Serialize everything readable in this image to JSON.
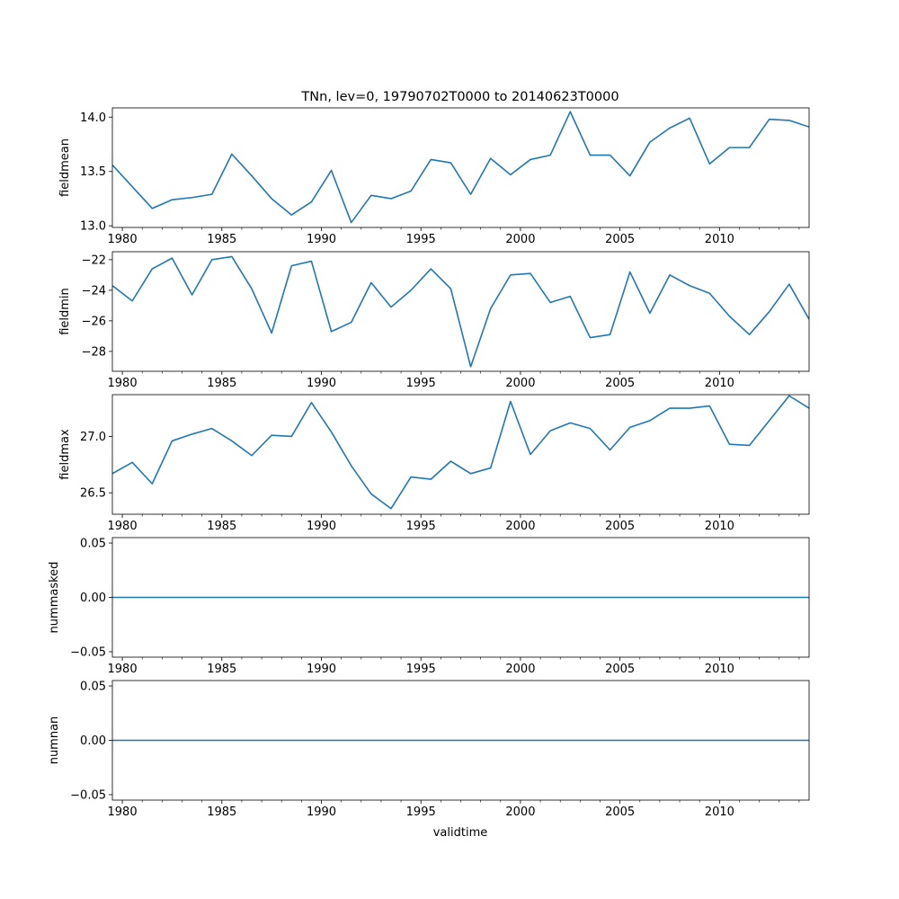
{
  "figure": {
    "title": "TNn, lev=0, 19790702T0000 to 20140623T0000",
    "xlabel": "validtime"
  },
  "chart_data": [
    {
      "type": "line",
      "name": "fieldmean",
      "ylabel": "fieldmean",
      "xlim": [
        1979.5,
        2014.5
      ],
      "ylim": [
        12.985,
        14.085
      ],
      "xticks": [
        1980,
        1985,
        1990,
        1995,
        2000,
        2005,
        2010
      ],
      "yticks": [
        13.0,
        13.5,
        14.0
      ],
      "yticklabels": [
        "13.0",
        "13.5",
        "14.0"
      ],
      "x": [
        1979.5,
        1980.5,
        1981.5,
        1982.5,
        1983.5,
        1984.5,
        1985.5,
        1986.5,
        1987.5,
        1988.5,
        1989.5,
        1990.5,
        1991.5,
        1992.5,
        1993.5,
        1994.5,
        1995.5,
        1996.5,
        1997.5,
        1998.5,
        1999.5,
        2000.5,
        2001.5,
        2002.5,
        2003.5,
        2004.5,
        2005.5,
        2006.5,
        2007.5,
        2008.5,
        2009.5,
        2010.5,
        2011.5,
        2012.5,
        2013.5,
        2014.5
      ],
      "values": [
        13.56,
        13.36,
        13.16,
        13.24,
        13.26,
        13.29,
        13.66,
        13.46,
        13.25,
        13.1,
        13.22,
        13.51,
        13.03,
        13.28,
        13.25,
        13.32,
        13.61,
        13.58,
        13.29,
        13.62,
        13.47,
        13.61,
        13.65,
        14.05,
        13.65,
        13.65,
        13.46,
        13.77,
        13.9,
        13.99,
        13.57,
        13.72,
        13.72,
        13.98,
        13.97,
        13.91
      ],
      "color": "#1f77b4"
    },
    {
      "type": "line",
      "name": "fieldmin",
      "ylabel": "fieldmin",
      "xlim": [
        1979.5,
        2014.5
      ],
      "ylim": [
        -29.3,
        -21.48
      ],
      "xticks": [
        1980,
        1985,
        1990,
        1995,
        2000,
        2005,
        2010
      ],
      "yticks": [
        -28,
        -26,
        -24,
        -22
      ],
      "yticklabels": [
        "−28",
        "−26",
        "−24",
        "−22"
      ],
      "x": [
        1979.5,
        1980.5,
        1981.5,
        1982.5,
        1983.5,
        1984.5,
        1985.5,
        1986.5,
        1987.5,
        1988.5,
        1989.5,
        1990.5,
        1991.5,
        1992.5,
        1993.5,
        1994.5,
        1995.5,
        1996.5,
        1997.5,
        1998.5,
        1999.5,
        2000.5,
        2001.5,
        2002.5,
        2003.5,
        2004.5,
        2005.5,
        2006.5,
        2007.5,
        2008.5,
        2009.5,
        2010.5,
        2011.5,
        2012.5,
        2013.5,
        2014.5
      ],
      "values": [
        -23.7,
        -24.7,
        -22.6,
        -21.9,
        -24.3,
        -22.0,
        -21.8,
        -23.9,
        -26.8,
        -22.4,
        -22.1,
        -26.7,
        -26.1,
        -23.5,
        -25.1,
        -24.0,
        -22.6,
        -23.9,
        -29.0,
        -25.2,
        -23.0,
        -22.9,
        -24.8,
        -24.4,
        -27.1,
        -26.9,
        -22.8,
        -25.5,
        -23.0,
        -23.7,
        -24.2,
        -25.7,
        -26.9,
        -25.4,
        -23.6,
        -25.9
      ],
      "color": "#1f77b4"
    },
    {
      "type": "line",
      "name": "fieldmax",
      "ylabel": "fieldmax",
      "xlim": [
        1979.5,
        2014.5
      ],
      "ylim": [
        26.31,
        27.37
      ],
      "xticks": [
        1980,
        1985,
        1990,
        1995,
        2000,
        2005,
        2010
      ],
      "yticks": [
        26.5,
        27.0
      ],
      "yticklabels": [
        "26.5",
        "27.0"
      ],
      "x": [
        1979.5,
        1980.5,
        1981.5,
        1982.5,
        1983.5,
        1984.5,
        1985.5,
        1986.5,
        1987.5,
        1988.5,
        1989.5,
        1990.5,
        1991.5,
        1992.5,
        1993.5,
        1994.5,
        1995.5,
        1996.5,
        1997.5,
        1998.5,
        1999.5,
        2000.5,
        2001.5,
        2002.5,
        2003.5,
        2004.5,
        2005.5,
        2006.5,
        2007.5,
        2008.5,
        2009.5,
        2010.5,
        2011.5,
        2012.5,
        2013.5,
        2014.5
      ],
      "values": [
        26.67,
        26.77,
        26.58,
        26.96,
        27.02,
        27.07,
        26.96,
        26.83,
        27.01,
        27.0,
        27.3,
        27.04,
        26.74,
        26.49,
        26.36,
        26.64,
        26.62,
        26.78,
        26.67,
        26.72,
        27.31,
        26.84,
        27.05,
        27.12,
        27.07,
        26.88,
        27.08,
        27.14,
        27.25,
        27.25,
        27.27,
        26.93,
        26.92,
        27.14,
        27.36,
        27.25
      ],
      "color": "#1f77b4"
    },
    {
      "type": "line",
      "name": "nummasked",
      "ylabel": "nummasked",
      "xlim": [
        1979.5,
        2014.5
      ],
      "ylim": [
        -0.055,
        0.055
      ],
      "xticks": [
        1980,
        1985,
        1990,
        1995,
        2000,
        2005,
        2010
      ],
      "yticks": [
        -0.05,
        0.0,
        0.05
      ],
      "yticklabels": [
        "−0.05",
        "0.00",
        "0.05"
      ],
      "x": [
        1979.5,
        2014.5
      ],
      "values": [
        0,
        0
      ],
      "color": "#1f77b4"
    },
    {
      "type": "line",
      "name": "numnan",
      "ylabel": "numnan",
      "xlim": [
        1979.5,
        2014.5
      ],
      "ylim": [
        -0.055,
        0.055
      ],
      "xticks": [
        1980,
        1985,
        1990,
        1995,
        2000,
        2005,
        2010
      ],
      "yticks": [
        -0.05,
        0.0,
        0.05
      ],
      "yticklabels": [
        "−0.05",
        "0.00",
        "0.05"
      ],
      "x": [
        1979.5,
        2014.5
      ],
      "values": [
        0,
        0
      ],
      "color": "#1f77b4"
    }
  ]
}
